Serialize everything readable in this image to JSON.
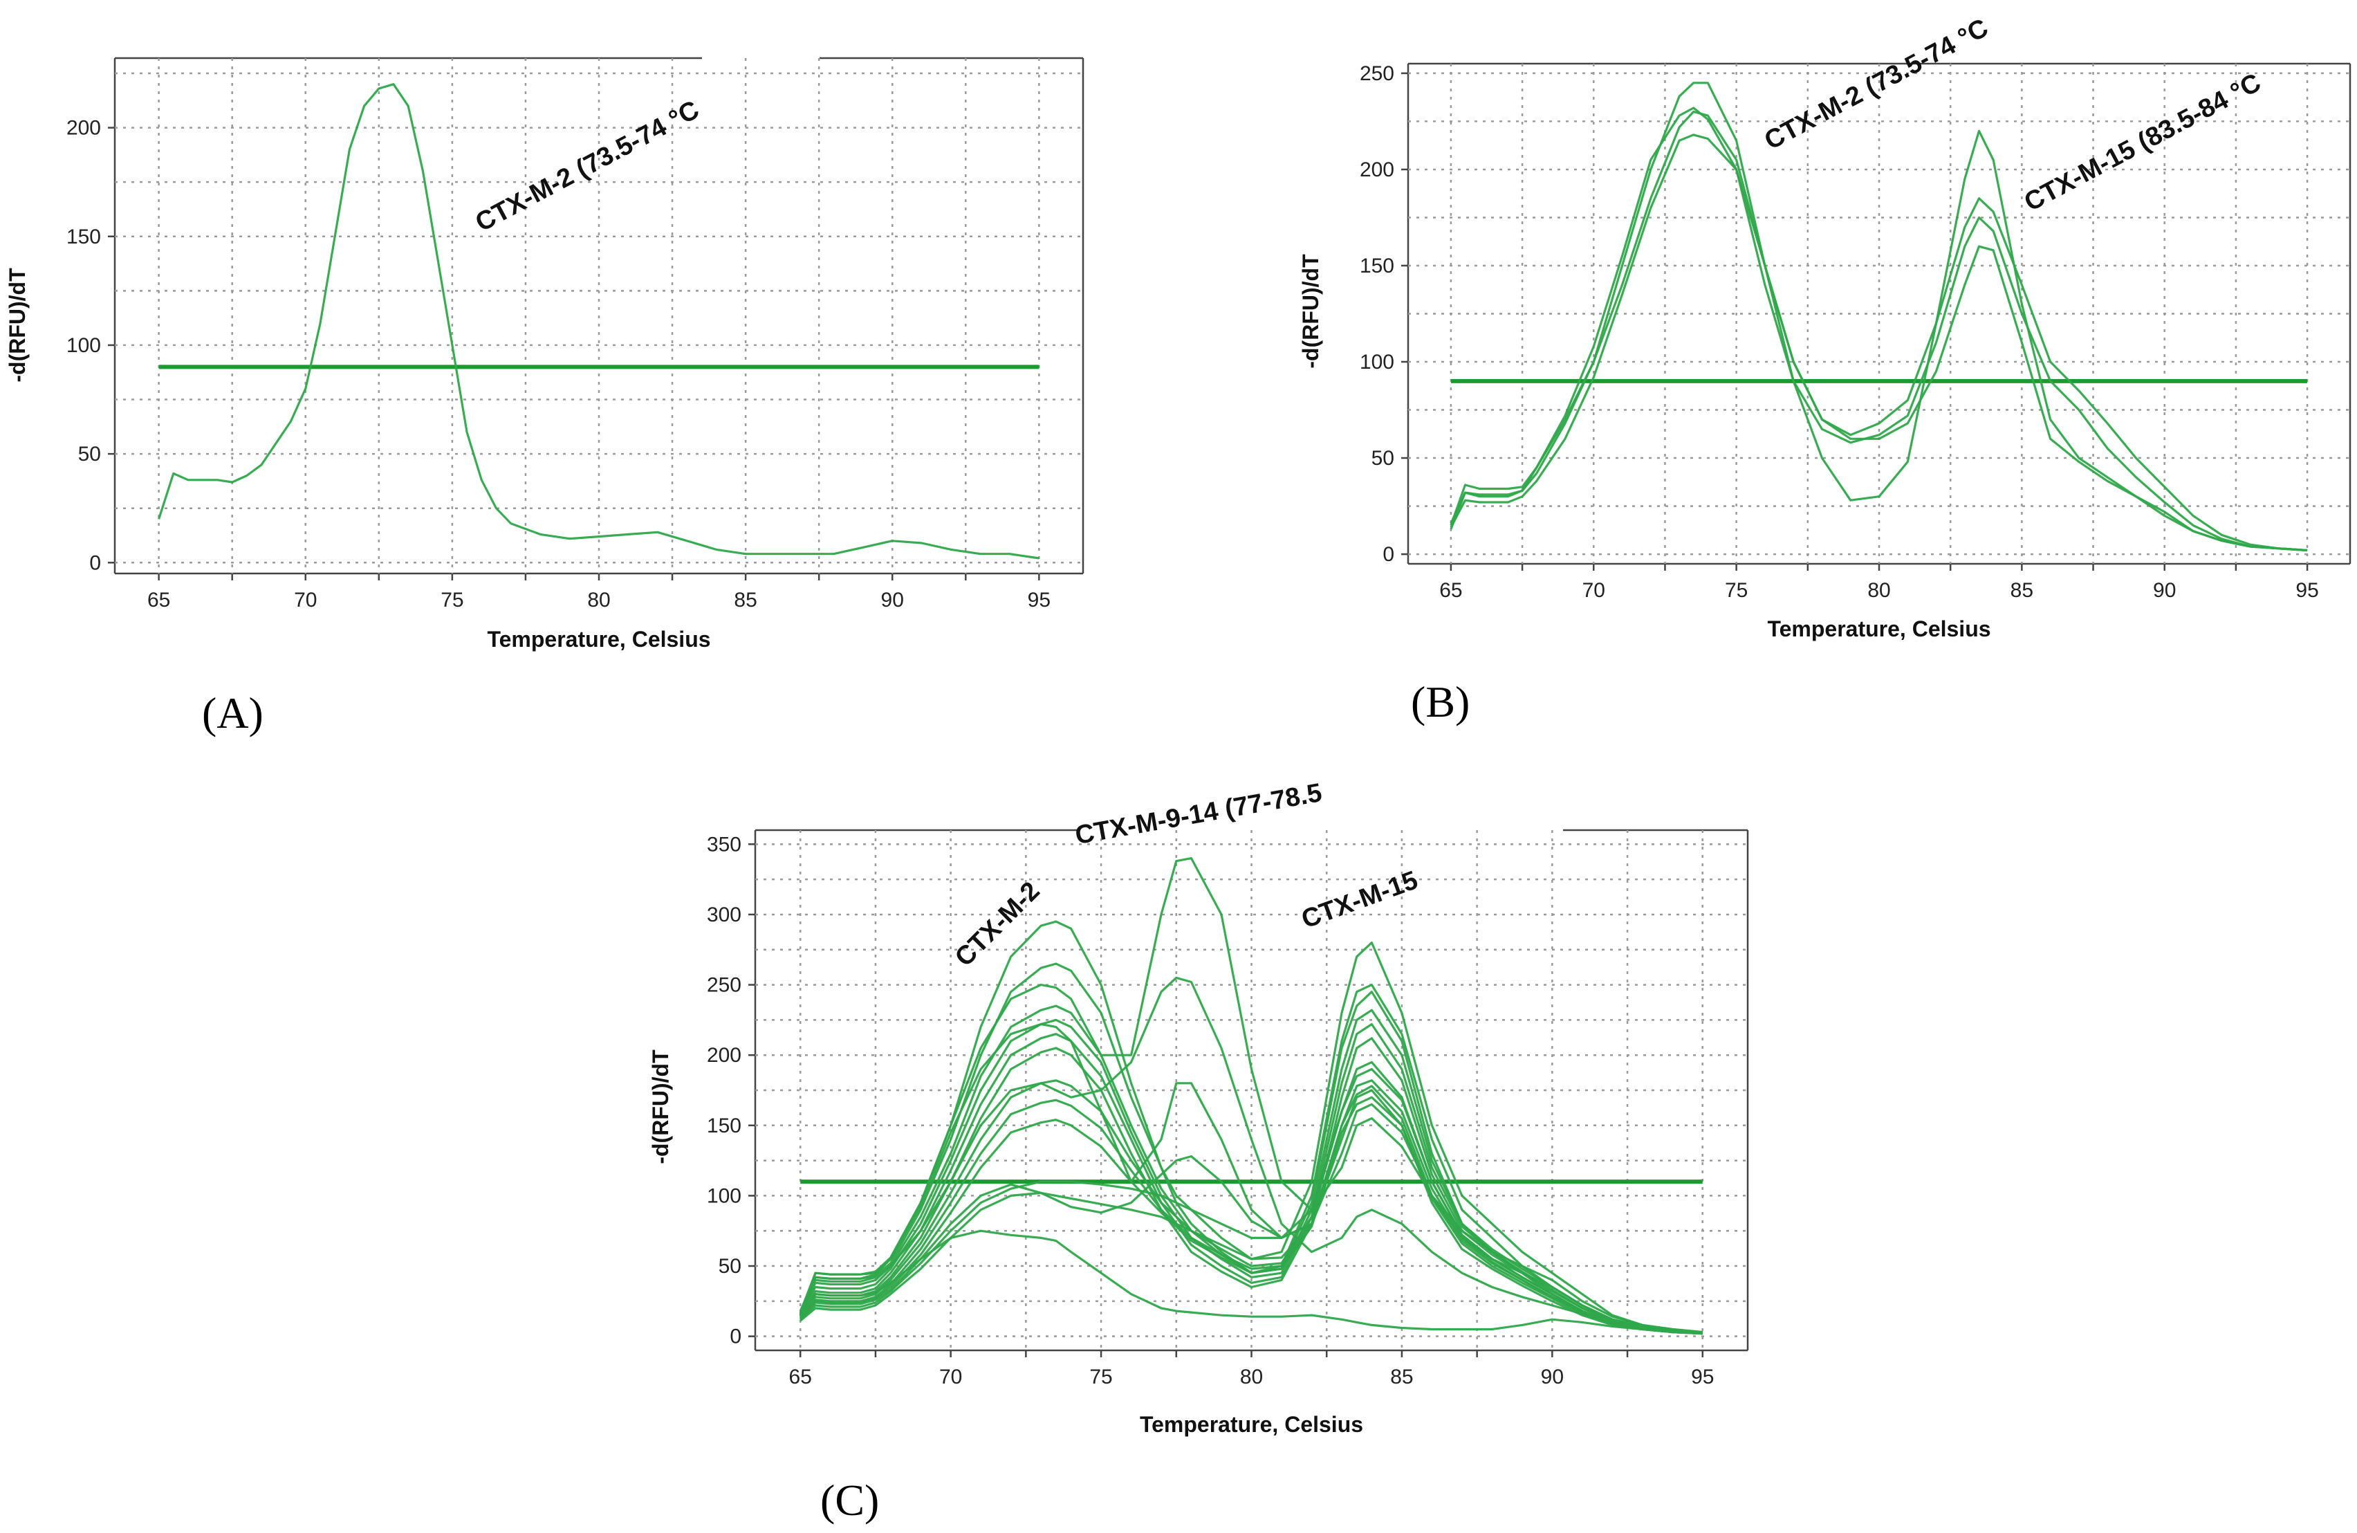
{
  "colors": {
    "curve": "#2ea84a",
    "threshold": "#1b9a30"
  },
  "chart_data": [
    {
      "type": "line",
      "panel_label": "(A)",
      "xlabel": "Temperature, Celsius",
      "ylabel": "-d(RFU)/dT",
      "xlim": [
        63.5,
        96.5
      ],
      "ylim": [
        -5,
        232
      ],
      "xticks": [
        65,
        70,
        75,
        80,
        85,
        90,
        95
      ],
      "yticks": [
        0,
        50,
        100,
        150,
        200
      ],
      "threshold": 90,
      "annotations": [
        {
          "text": "CTX-M-2 (73.5-74 °C",
          "x": 76,
          "y": 152,
          "rotate": -28
        }
      ],
      "series": [
        {
          "name": "s1",
          "x": [
            65,
            65.5,
            66,
            67,
            67.5,
            68,
            68.5,
            69,
            69.5,
            70,
            70.5,
            71,
            71.5,
            72,
            72.5,
            73,
            73.5,
            74,
            74.5,
            75,
            75.5,
            76,
            76.5,
            77,
            78,
            79,
            80,
            81,
            82,
            83,
            84,
            85,
            86,
            87,
            88,
            89,
            90,
            91,
            92,
            93,
            94,
            95
          ],
          "y": [
            20,
            41,
            38,
            38,
            37,
            40,
            45,
            55,
            65,
            80,
            110,
            150,
            190,
            210,
            218,
            220,
            210,
            180,
            140,
            100,
            60,
            38,
            25,
            18,
            13,
            11,
            12,
            13,
            14,
            10,
            6,
            4,
            4,
            4,
            4,
            7,
            10,
            9,
            6,
            4,
            4,
            2
          ]
        }
      ]
    },
    {
      "type": "line",
      "panel_label": "(B)",
      "xlabel": "Temperature, Celsius",
      "ylabel": "-d(RFU)/dT",
      "xlim": [
        63.5,
        96.5
      ],
      "ylim": [
        -5,
        255
      ],
      "xticks": [
        65,
        70,
        75,
        80,
        85,
        90,
        95
      ],
      "yticks": [
        0,
        50,
        100,
        150,
        200,
        250
      ],
      "threshold": 90,
      "annotations": [
        {
          "text": "CTX-M-2 (73.5-74 °C",
          "x": 76.2,
          "y": 210,
          "rotate": -28
        },
        {
          "text": "CTX-M-15 (83.5-84 °C",
          "x": 85.3,
          "y": 178,
          "rotate": -28
        }
      ],
      "series": [
        {
          "name": "s1",
          "x": [
            65,
            65.5,
            66,
            67,
            67.5,
            68,
            69,
            70,
            71,
            72,
            73,
            73.5,
            74,
            75,
            76,
            77,
            78,
            79,
            80,
            81,
            82,
            83,
            83.5,
            84,
            85,
            86,
            87,
            88,
            89,
            90,
            91,
            92,
            93,
            94,
            95
          ],
          "y": [
            15,
            36,
            34,
            34,
            35,
            45,
            70,
            100,
            150,
            200,
            238,
            245,
            245,
            215,
            150,
            90,
            50,
            28,
            30,
            48,
            120,
            195,
            220,
            205,
            130,
            70,
            50,
            40,
            30,
            20,
            12,
            7,
            4,
            3,
            2
          ]
        },
        {
          "name": "s2",
          "x": [
            65,
            65.5,
            66,
            67,
            67.5,
            68,
            69,
            70,
            71,
            72,
            73,
            73.5,
            74,
            75,
            76,
            77,
            78,
            79,
            80,
            81,
            82,
            83,
            83.5,
            84,
            85,
            86,
            87,
            88,
            89,
            90,
            91,
            92,
            93,
            94,
            95
          ],
          "y": [
            13,
            32,
            31,
            31,
            33,
            42,
            68,
            100,
            140,
            185,
            222,
            230,
            228,
            205,
            150,
            100,
            70,
            62,
            68,
            80,
            120,
            170,
            185,
            178,
            140,
            100,
            85,
            68,
            50,
            35,
            20,
            10,
            5,
            3,
            2
          ]
        },
        {
          "name": "s3",
          "x": [
            65,
            65.5,
            66,
            67,
            67.5,
            68,
            69,
            70,
            71,
            72,
            73,
            73.5,
            74,
            75,
            76,
            77,
            78,
            79,
            80,
            81,
            82,
            83,
            83.5,
            84,
            85,
            86,
            87,
            88,
            89,
            90,
            91,
            92,
            93,
            94,
            95
          ],
          "y": [
            14,
            28,
            27,
            27,
            30,
            38,
            60,
            92,
            135,
            180,
            215,
            218,
            216,
            200,
            150,
            100,
            70,
            60,
            60,
            68,
            95,
            140,
            160,
            158,
            110,
            60,
            48,
            38,
            30,
            22,
            12,
            7,
            4,
            3,
            2
          ]
        },
        {
          "name": "s4",
          "x": [
            65,
            65.5,
            66,
            67,
            67.5,
            68,
            69,
            70,
            71,
            72,
            73,
            73.5,
            74,
            75,
            76,
            77,
            78,
            79,
            80,
            81,
            82,
            83,
            83.5,
            84,
            85,
            86,
            87,
            88,
            89,
            90,
            91,
            92,
            93,
            94,
            95
          ],
          "y": [
            16,
            32,
            30,
            30,
            33,
            45,
            72,
            108,
            155,
            205,
            228,
            232,
            226,
            200,
            140,
            90,
            65,
            58,
            62,
            72,
            110,
            160,
            175,
            168,
            125,
            90,
            75,
            55,
            40,
            27,
            15,
            8,
            4,
            3,
            2
          ]
        }
      ]
    },
    {
      "type": "line",
      "panel_label": "(C)",
      "xlabel": "Temperature, Celsius",
      "ylabel": "-d(RFU)/dT",
      "xlim": [
        63.5,
        96.5
      ],
      "ylim": [
        -10,
        360
      ],
      "xticks": [
        65,
        70,
        75,
        80,
        85,
        90,
        95
      ],
      "yticks": [
        0,
        50,
        100,
        150,
        200,
        250,
        300,
        350
      ],
      "threshold": 110,
      "annotations": [
        {
          "text": "CTX-M-2",
          "x": 70.5,
          "y": 262,
          "rotate": -45
        },
        {
          "text": "CTX-M-9-14 (77-78.5",
          "x": 74.2,
          "y": 350,
          "rotate": -10
        },
        {
          "text": "CTX-M-15",
          "x": 81.8,
          "y": 290,
          "rotate": -20
        }
      ],
      "x": [
        65,
        65.5,
        66,
        67,
        67.5,
        68,
        69,
        70,
        71,
        72,
        73,
        73.5,
        74,
        75,
        76,
        77,
        77.5,
        78,
        79,
        80,
        81,
        82,
        83,
        83.5,
        84,
        85,
        86,
        87,
        88,
        89,
        90,
        91,
        92,
        93,
        94,
        95
      ],
      "series": [
        {
          "name": "s1",
          "y": [
            15,
            45,
            44,
            44,
            45,
            55,
            95,
            150,
            220,
            270,
            292,
            295,
            290,
            250,
            180,
            120,
            100,
            90,
            70,
            55,
            60,
            110,
            230,
            270,
            280,
            230,
            150,
            100,
            80,
            60,
            45,
            30,
            15,
            8,
            5,
            3
          ]
        },
        {
          "name": "s2",
          "y": [
            18,
            42,
            41,
            41,
            43,
            52,
            90,
            140,
            200,
            245,
            262,
            265,
            260,
            230,
            170,
            120,
            95,
            80,
            60,
            45,
            50,
            100,
            210,
            245,
            250,
            215,
            140,
            90,
            70,
            50,
            35,
            22,
            12,
            7,
            4,
            2
          ]
        },
        {
          "name": "s3",
          "y": [
            14,
            38,
            37,
            37,
            40,
            50,
            85,
            130,
            185,
            220,
            232,
            235,
            230,
            200,
            150,
            105,
            90,
            75,
            58,
            45,
            48,
            95,
            205,
            235,
            245,
            210,
            130,
            80,
            60,
            45,
            30,
            18,
            10,
            6,
            4,
            2
          ]
        },
        {
          "name": "s4",
          "y": [
            16,
            35,
            34,
            34,
            37,
            48,
            80,
            125,
            175,
            210,
            222,
            225,
            220,
            195,
            145,
            100,
            85,
            70,
            55,
            42,
            45,
            90,
            190,
            225,
            232,
            200,
            125,
            80,
            62,
            48,
            35,
            22,
            12,
            7,
            4,
            2
          ]
        },
        {
          "name": "s5",
          "y": [
            15,
            32,
            31,
            31,
            34,
            45,
            75,
            118,
            165,
            200,
            212,
            215,
            210,
            185,
            140,
            95,
            80,
            65,
            50,
            38,
            42,
            85,
            180,
            215,
            222,
            190,
            120,
            78,
            60,
            46,
            33,
            20,
            11,
            6,
            4,
            2
          ]
        },
        {
          "name": "s6",
          "y": [
            14,
            30,
            29,
            29,
            32,
            42,
            70,
            110,
            155,
            190,
            202,
            205,
            200,
            175,
            130,
            90,
            75,
            60,
            46,
            35,
            40,
            80,
            170,
            205,
            212,
            182,
            115,
            75,
            58,
            45,
            32,
            20,
            11,
            6,
            4,
            2
          ]
        },
        {
          "name": "s7",
          "y": [
            13,
            28,
            27,
            27,
            30,
            40,
            66,
            102,
            140,
            170,
            180,
            182,
            178,
            160,
            125,
            95,
            85,
            75,
            62,
            50,
            52,
            85,
            160,
            185,
            190,
            168,
            110,
            72,
            55,
            42,
            30,
            18,
            10,
            6,
            4,
            2
          ]
        },
        {
          "name": "s8",
          "y": [
            13,
            26,
            25,
            25,
            28,
            37,
            62,
            95,
            130,
            158,
            166,
            168,
            164,
            148,
            118,
            90,
            80,
            70,
            58,
            48,
            50,
            80,
            150,
            172,
            178,
            155,
            100,
            68,
            52,
            40,
            28,
            17,
            10,
            6,
            4,
            2
          ]
        },
        {
          "name": "s9",
          "y": [
            12,
            25,
            24,
            24,
            27,
            35,
            58,
            88,
            120,
            145,
            152,
            154,
            150,
            135,
            110,
            88,
            78,
            68,
            56,
            45,
            48,
            78,
            145,
            165,
            170,
            150,
            98,
            66,
            50,
            38,
            27,
            16,
            9,
            5,
            3,
            2
          ]
        },
        {
          "name": "s10",
          "y": [
            12,
            24,
            23,
            23,
            26,
            33,
            55,
            80,
            100,
            108,
            102,
            97,
            92,
            88,
            95,
            115,
            125,
            128,
            110,
            82,
            70,
            80,
            140,
            170,
            175,
            150,
            95,
            62,
            48,
            36,
            25,
            15,
            8,
            5,
            3,
            2
          ]
        },
        {
          "name": "s11",
          "y": [
            15,
            42,
            41,
            41,
            44,
            55,
            92,
            145,
            190,
            215,
            222,
            220,
            210,
            160,
            110,
            140,
            180,
            180,
            140,
            90,
            70,
            80,
            130,
            160,
            165,
            145,
            100,
            70,
            55,
            45,
            35,
            22,
            12,
            7,
            4,
            2
          ]
        },
        {
          "name": "s12",
          "y": [
            17,
            45,
            44,
            44,
            46,
            56,
            95,
            150,
            205,
            240,
            250,
            248,
            240,
            200,
            200,
            300,
            338,
            340,
            300,
            190,
            110,
            90,
            120,
            150,
            155,
            135,
            100,
            75,
            60,
            50,
            40,
            25,
            14,
            8,
            5,
            3
          ]
        },
        {
          "name": "s13",
          "y": [
            16,
            40,
            39,
            39,
            42,
            50,
            75,
            110,
            150,
            175,
            180,
            175,
            170,
            175,
            195,
            245,
            255,
            252,
            205,
            140,
            80,
            60,
            70,
            85,
            90,
            80,
            60,
            45,
            35,
            28,
            22,
            16,
            10,
            6,
            4,
            2
          ]
        },
        {
          "name": "s14",
          "y": [
            12,
            22,
            21,
            21,
            24,
            32,
            52,
            75,
            95,
            105,
            110,
            110,
            110,
            108,
            105,
            100,
            95,
            90,
            80,
            70,
            70,
            90,
            160,
            190,
            195,
            170,
            110,
            72,
            55,
            42,
            30,
            18,
            10,
            6,
            4,
            2
          ]
        },
        {
          "name": "s15",
          "y": [
            11,
            20,
            19,
            19,
            22,
            30,
            48,
            70,
            90,
            100,
            102,
            100,
            98,
            94,
            90,
            85,
            80,
            75,
            65,
            55,
            56,
            80,
            150,
            178,
            182,
            160,
            105,
            70,
            53,
            40,
            28,
            17,
            9,
            5,
            3,
            2
          ]
        },
        {
          "name": "s16",
          "y": [
            14,
            30,
            29,
            29,
            31,
            38,
            55,
            70,
            75,
            72,
            70,
            68,
            60,
            45,
            30,
            20,
            18,
            17,
            15,
            14,
            14,
            15,
            12,
            10,
            8,
            6,
            5,
            5,
            5,
            8,
            12,
            10,
            7,
            5,
            3,
            2
          ]
        }
      ]
    }
  ]
}
